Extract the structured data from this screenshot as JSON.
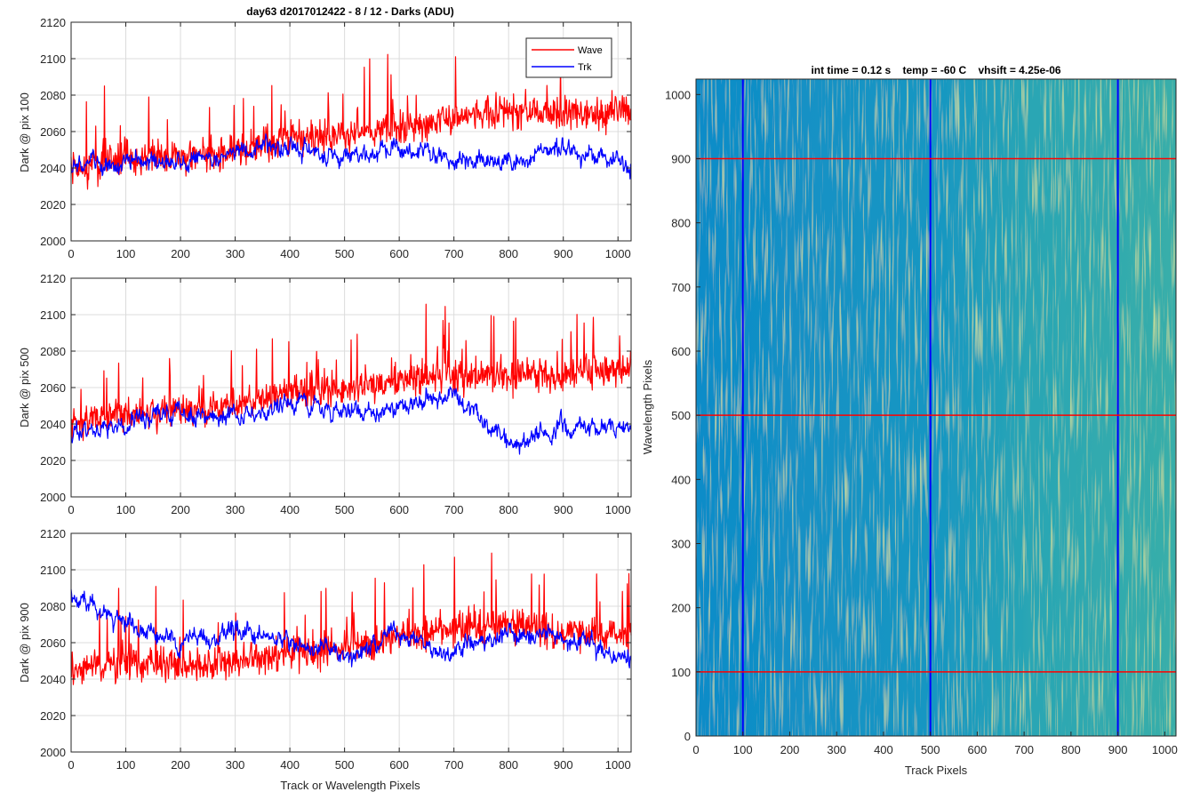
{
  "figure_title": "day63 d2017012422 - 8 / 12 - Darks (ADU)",
  "chart_data": [
    {
      "type": "line",
      "ylabel": "Dark @ pix 100",
      "xlim": [
        0,
        1024
      ],
      "ylim": [
        2000,
        2120
      ],
      "xticks": [
        0,
        100,
        200,
        300,
        400,
        500,
        600,
        700,
        800,
        900,
        1000
      ],
      "yticks": [
        2000,
        2020,
        2040,
        2060,
        2080,
        2100,
        2120
      ],
      "grid": true,
      "legend": {
        "placement": "top-right",
        "entries": [
          "Wave",
          "Trk"
        ]
      },
      "series": [
        {
          "name": "Wave",
          "color": "#ff0000",
          "x": [
            0,
            100,
            200,
            300,
            400,
            500,
            600,
            700,
            800,
            900,
            1024
          ],
          "y": [
            2038,
            2046,
            2046,
            2049,
            2055,
            2057,
            2062,
            2068,
            2071,
            2069,
            2071
          ]
        },
        {
          "name": "Trk",
          "color": "#0000ff",
          "x": [
            0,
            100,
            200,
            300,
            400,
            500,
            600,
            700,
            800,
            900,
            1024
          ],
          "y": [
            2040,
            2043,
            2044,
            2048,
            2052,
            2046,
            2050,
            2045,
            2042,
            2052,
            2040
          ]
        }
      ]
    },
    {
      "type": "line",
      "ylabel": "Dark @ pix 500",
      "xlim": [
        0,
        1024
      ],
      "ylim": [
        2000,
        2120
      ],
      "xticks": [
        0,
        100,
        200,
        300,
        400,
        500,
        600,
        700,
        800,
        900,
        1000
      ],
      "yticks": [
        2000,
        2020,
        2040,
        2060,
        2080,
        2100,
        2120
      ],
      "grid": true,
      "series": [
        {
          "name": "Wave",
          "color": "#ff0000",
          "x": [
            0,
            100,
            200,
            300,
            400,
            500,
            600,
            700,
            800,
            900,
            1024
          ],
          "y": [
            2040,
            2046,
            2048,
            2050,
            2058,
            2060,
            2064,
            2066,
            2066,
            2066,
            2070
          ]
        },
        {
          "name": "Trk",
          "color": "#0000ff",
          "x": [
            0,
            100,
            200,
            300,
            400,
            500,
            600,
            700,
            800,
            900,
            1024
          ],
          "y": [
            2035,
            2042,
            2045,
            2046,
            2050,
            2048,
            2048,
            2058,
            2028,
            2040,
            2040
          ]
        }
      ]
    },
    {
      "type": "line",
      "ylabel": "Dark @ pix 900",
      "xlabel": "Track or Wavelength Pixels",
      "xlim": [
        0,
        1024
      ],
      "ylim": [
        2000,
        2120
      ],
      "xticks": [
        0,
        100,
        200,
        300,
        400,
        500,
        600,
        700,
        800,
        900,
        1000
      ],
      "yticks": [
        2000,
        2020,
        2040,
        2060,
        2080,
        2100,
        2120
      ],
      "grid": true,
      "series": [
        {
          "name": "Wave",
          "color": "#ff0000",
          "x": [
            0,
            100,
            200,
            300,
            400,
            500,
            600,
            700,
            800,
            900,
            1024
          ],
          "y": [
            2046,
            2048,
            2048,
            2050,
            2054,
            2058,
            2063,
            2068,
            2070,
            2064,
            2065
          ]
        },
        {
          "name": "Trk",
          "color": "#0000ff",
          "x": [
            0,
            100,
            200,
            300,
            400,
            500,
            600,
            700,
            800,
            900,
            1024
          ],
          "y": [
            2085,
            2072,
            2060,
            2065,
            2062,
            2052,
            2066,
            2055,
            2065,
            2064,
            2050
          ]
        }
      ]
    },
    {
      "type": "heatmap",
      "title": "int time = 0.12 s    temp = -60 C    vhsift = 4.25e-06",
      "xlabel": "Track Pixels",
      "ylabel": "Wavelength Pixels",
      "xlim": [
        0,
        1024
      ],
      "ylim": [
        0,
        1024
      ],
      "xticks": [
        0,
        100,
        200,
        300,
        400,
        500,
        600,
        700,
        800,
        900,
        1000
      ],
      "yticks": [
        0,
        100,
        200,
        300,
        400,
        500,
        600,
        700,
        800,
        900,
        1000
      ],
      "grid": false,
      "colormap": [
        "#0d88c6",
        "#1ba3b8",
        "#4cb8a0"
      ],
      "vertical_markers": {
        "values": [
          100,
          500,
          900
        ],
        "color": "#0000ff"
      },
      "horizontal_markers": {
        "values": [
          100,
          500,
          900
        ],
        "color": "#ff0000"
      }
    }
  ]
}
